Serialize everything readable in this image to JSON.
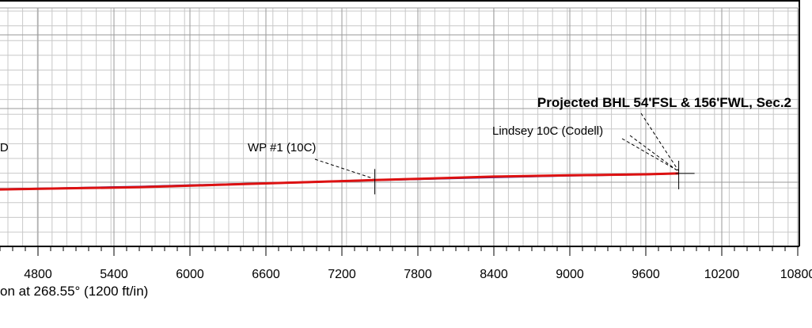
{
  "chart_data": {
    "type": "line",
    "title": "",
    "xlabel": "on at 268.55° (1200 ft/in)",
    "ylabel": "",
    "x_ticks": [
      4800,
      5400,
      6000,
      6600,
      7200,
      7800,
      8400,
      9000,
      9600,
      10200,
      10800
    ],
    "x_tick_labels": [
      "4800",
      "5400",
      "6000",
      "6600",
      "7200",
      "7800",
      "8400",
      "9000",
      "9600",
      "10200",
      "10800"
    ],
    "xlim": [
      4480,
      10860
    ],
    "grid": true,
    "series": [
      {
        "color": "#2222aa",
        "x": [
          4480,
          5000,
          5600,
          6200,
          6800,
          7300,
          7460,
          7800,
          8400,
          9000,
          9600,
          9860
        ],
        "y": [
          8,
          13,
          20,
          30,
          40,
          49,
          52,
          57,
          66,
          74,
          80,
          84
        ]
      },
      {
        "color": "#dd1111",
        "x": [
          4480,
          5000,
          5600,
          6200,
          6800,
          7300,
          7460,
          7800,
          8400,
          9000,
          9600,
          9860
        ],
        "y": [
          7,
          12,
          18,
          29,
          40,
          49,
          52,
          58,
          69,
          75,
          80,
          84
        ]
      }
    ],
    "annotations": [
      {
        "text": "Projected BHL 54'FSL & 156'FWL, Sec.2",
        "bold": true
      },
      {
        "text": "Lindsey 10C (Codell)",
        "bold": false
      },
      {
        "text": "WP #1 (10C)",
        "bold": false
      },
      {
        "text": "'D",
        "bold": false
      }
    ],
    "markers": [
      {
        "label": "WP #1 (10C)",
        "x": 7460,
        "y": 52
      },
      {
        "label": "Lindsey 10C (Codell)",
        "x": 9860,
        "y": 84
      }
    ]
  }
}
